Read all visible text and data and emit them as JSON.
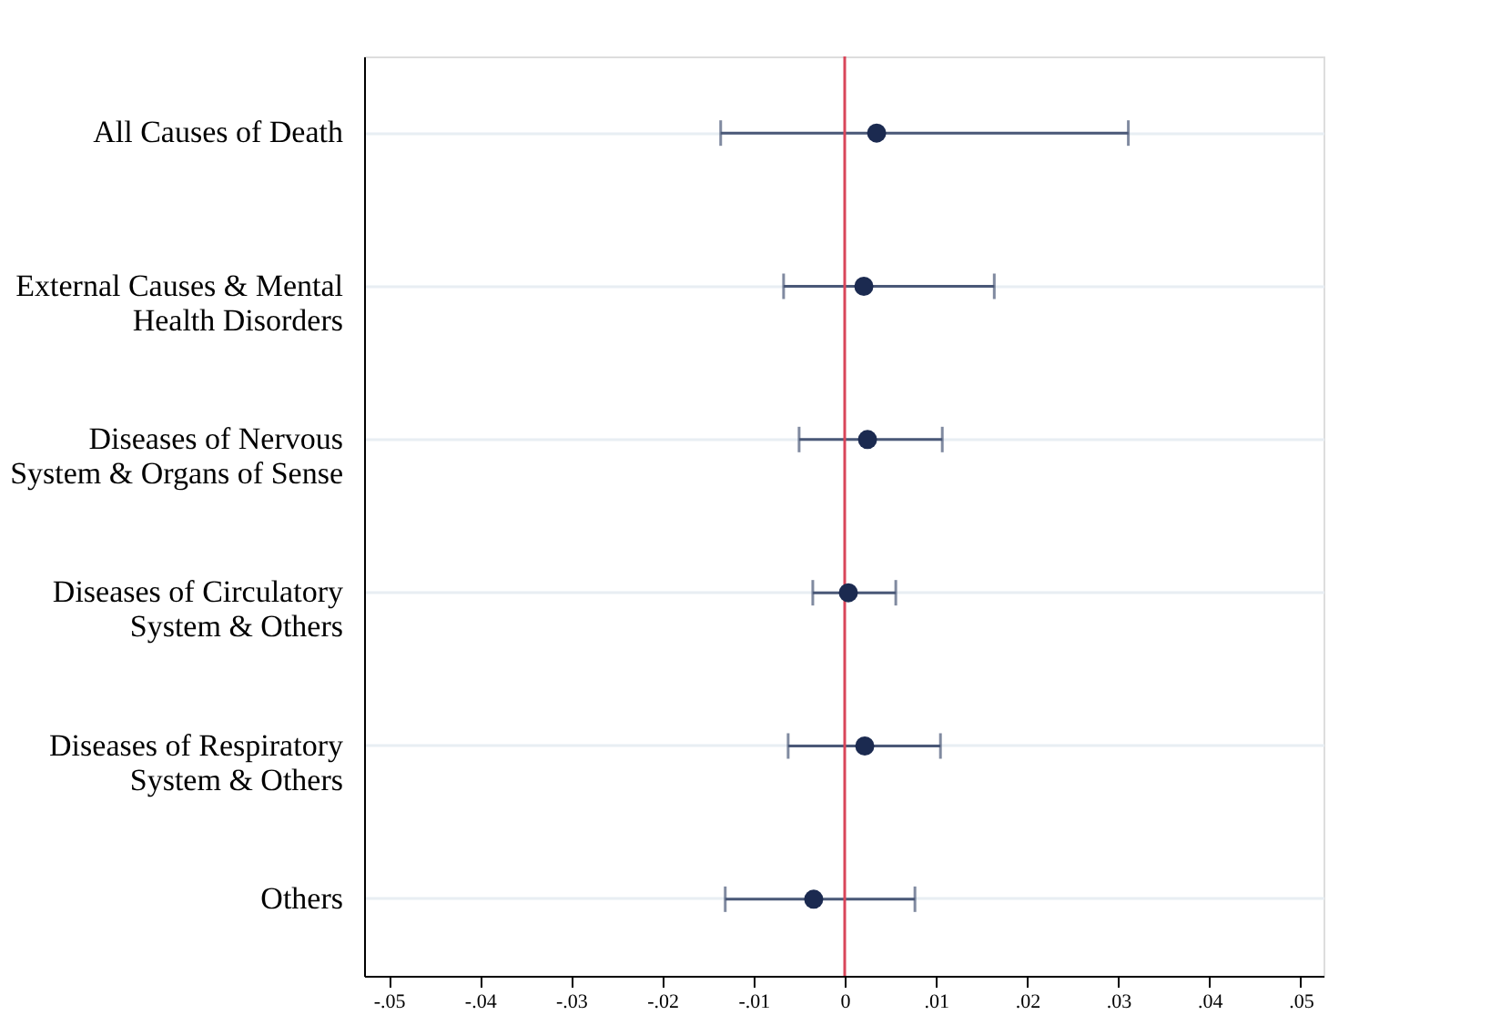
{
  "chart_data": {
    "type": "scatter",
    "orientation": "horizontal",
    "categories": [
      "All Causes of Death",
      "External Causes & Mental Health Disorders",
      "Diseases of Nervous System & Organs of Sense",
      "Diseases of Circulatory System & Others",
      "Diseases of Respiratory System & Others",
      "Others"
    ],
    "series": [
      {
        "color": "#1b2a50",
        "values": [
          0.0035,
          0.0021,
          0.0025,
          0.0004,
          0.0022,
          -0.0034
        ],
        "errors": [
          [
            -0.0136,
            0.0311
          ],
          [
            -0.0067,
            0.0164
          ],
          [
            -0.005,
            0.0107
          ],
          [
            -0.0035,
            0.0056
          ],
          [
            -0.0062,
            0.0105
          ],
          [
            -0.0131,
            0.0077
          ]
        ]
      }
    ],
    "xlim": [
      -0.0527,
      0.0525
    ],
    "xticks": [
      {
        "value": -0.05,
        "label": "-.05"
      },
      {
        "value": -0.04,
        "label": "-.04"
      },
      {
        "value": -0.03,
        "label": "-.03"
      },
      {
        "value": -0.02,
        "label": "-.02"
      },
      {
        "value": -0.01,
        "label": "-.01"
      },
      0,
      {
        "value": 0.01,
        "label": ".01"
      },
      {
        "value": 0.02,
        "label": ".02"
      },
      {
        "value": 0.03,
        "label": ".03"
      },
      {
        "value": 0.04,
        "label": ".04"
      },
      {
        "value": 0.05,
        "label": ".05"
      }
    ],
    "ref_lines": [
      {
        "axis": "x",
        "value": 0,
        "color": "#d9465a"
      }
    ],
    "grid": "y",
    "marker": "circle"
  }
}
